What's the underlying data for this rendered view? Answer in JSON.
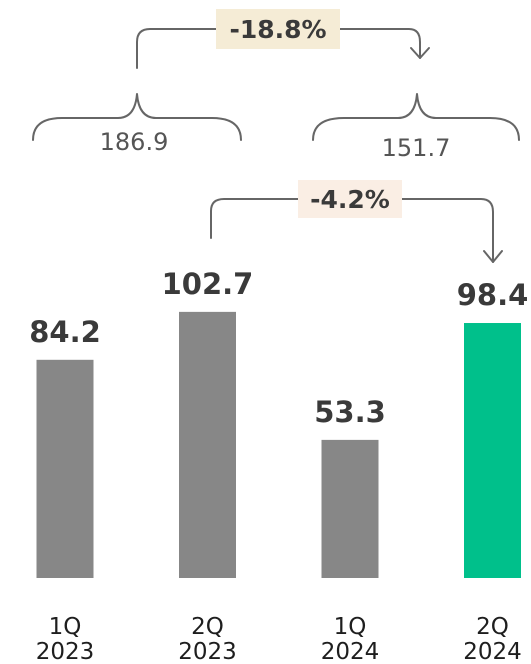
{
  "chart_data": {
    "type": "bar",
    "categories": [
      {
        "quarter": "1Q",
        "year": "2023"
      },
      {
        "quarter": "2Q",
        "year": "2023"
      },
      {
        "quarter": "1Q",
        "year": "2024"
      },
      {
        "quarter": "2Q",
        "year": "2024"
      }
    ],
    "values": [
      84.2,
      102.7,
      53.3,
      98.4
    ],
    "value_labels": [
      "84.2",
      "102.7",
      "53.3",
      "98.4"
    ],
    "bar_colors": [
      "#878787",
      "#878787",
      "#878787",
      "#00c08b"
    ],
    "ylim": [
      0,
      115
    ],
    "half_year_totals": [
      {
        "label": "186.9",
        "from_bar": 0,
        "to_bar": 1
      },
      {
        "label": "151.7",
        "from_bar": 2,
        "to_bar": 3
      }
    ],
    "changes": [
      {
        "label": "-18.8%",
        "from": "1H 2023 total",
        "to": "1H 2024 total",
        "badge_color": "#f5ecd6"
      },
      {
        "label": "-4.2%",
        "from_bar": 1,
        "to_bar": 3,
        "badge_color": "#faeee4"
      }
    ]
  }
}
